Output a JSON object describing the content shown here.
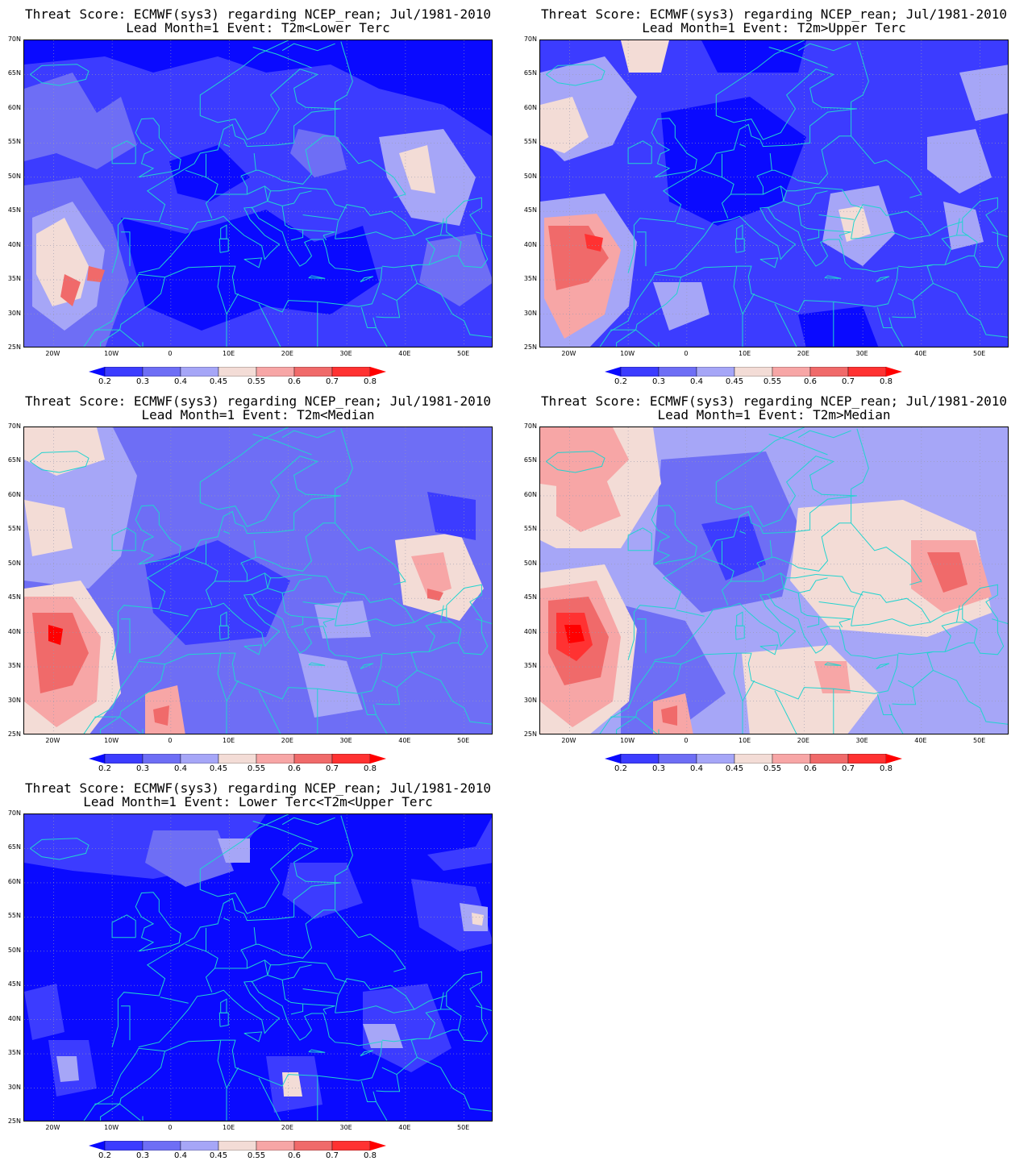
{
  "colors": {
    "deep_blue": "#0a0aff",
    "blue": "#3c3cff",
    "mid_blue": "#6e6ef5",
    "light_blue": "#a6a6f7",
    "neutral": "#f3dcd6",
    "light_red": "#f7a6a6",
    "mid_red": "#f06a6a",
    "red": "#ff3232",
    "deep_red": "#ff0000",
    "coastline": "#22d3cf",
    "grid": "#9a9ab0"
  },
  "axes": {
    "lat_labels": [
      "70N",
      "65N",
      "60N",
      "55N",
      "50N",
      "45N",
      "40N",
      "35N",
      "30N",
      "25N"
    ],
    "lon_labels": [
      "20W",
      "10W",
      "0",
      "10E",
      "20E",
      "30E",
      "40E",
      "50E"
    ]
  },
  "colorbar": {
    "labels": [
      "0.2",
      "0.3",
      "0.4",
      "0.45",
      "0.55",
      "0.6",
      "0.7",
      "0.8"
    ]
  },
  "panels": [
    {
      "line1": "Threat Score: ECMWF(sys3) regarding NCEP_rean; Jul/1981-2010",
      "line2": "Lead Month=1 Event: T2m<Lower Terc"
    },
    {
      "line1": "Threat Score: ECMWF(sys3) regarding NCEP_rean; Jul/1981-2010",
      "line2": "Lead Month=1 Event: T2m>Upper Terc"
    },
    {
      "line1": "Threat Score: ECMWF(sys3) regarding NCEP_rean; Jul/1981-2010",
      "line2": "Lead Month=1 Event: T2m<Median"
    },
    {
      "line1": "Threat Score: ECMWF(sys3) regarding NCEP_rean; Jul/1981-2010",
      "line2": "Lead Month=1 Event: T2m>Median"
    },
    {
      "line1": "Threat Score: ECMWF(sys3) regarding NCEP_rean; Jul/1981-2010",
      "line2": "Lead Month=1 Event: Lower Terc<T2m<Upper Terc"
    }
  ]
}
